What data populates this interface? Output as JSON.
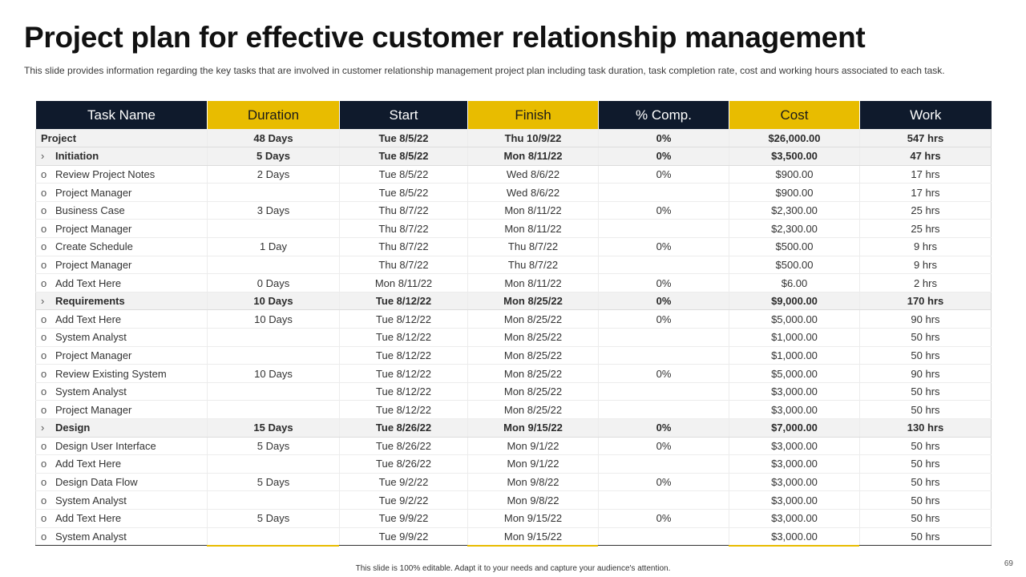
{
  "title": "Project plan for effective customer relationship management",
  "subtitle": "This slide provides information regarding the key tasks that are involved in customer relationship management project plan including task duration, task completion rate, cost and working hours associated to each task.",
  "columns": [
    "Task Name",
    "Duration",
    "Start",
    "Finish",
    "% Comp.",
    "Cost",
    "Work"
  ],
  "rows": [
    {
      "bold": true,
      "marker": "",
      "task": "Project",
      "duration": "48 Days",
      "start": "Tue 8/5/22",
      "finish": "Thu 10/9/22",
      "comp": "0%",
      "cost": "$26,000.00",
      "work": "547 hrs"
    },
    {
      "bold": true,
      "marker": "›",
      "task": "Initiation",
      "duration": "5 Days",
      "start": "Tue 8/5/22",
      "finish": "Mon 8/11/22",
      "comp": "0%",
      "cost": "$3,500.00",
      "work": "47 hrs"
    },
    {
      "bold": false,
      "marker": "o",
      "task": "Review Project Notes",
      "duration": "2 Days",
      "start": "Tue 8/5/22",
      "finish": "Wed 8/6/22",
      "comp": "0%",
      "cost": "$900.00",
      "work": "17 hrs"
    },
    {
      "bold": false,
      "marker": "o",
      "task": "Project Manager",
      "duration": "",
      "start": "Tue 8/5/22",
      "finish": "Wed 8/6/22",
      "comp": "",
      "cost": "$900.00",
      "work": "17 hrs"
    },
    {
      "bold": false,
      "marker": "o",
      "task": "Business Case",
      "duration": "3 Days",
      "start": "Thu 8/7/22",
      "finish": "Mon 8/11/22",
      "comp": "0%",
      "cost": "$2,300.00",
      "work": "25 hrs"
    },
    {
      "bold": false,
      "marker": "o",
      "task": "Project Manager",
      "duration": "",
      "start": "Thu 8/7/22",
      "finish": "Mon 8/11/22",
      "comp": "",
      "cost": "$2,300.00",
      "work": "25 hrs"
    },
    {
      "bold": false,
      "marker": "o",
      "task": "Create Schedule",
      "duration": "1 Day",
      "start": "Thu 8/7/22",
      "finish": "Thu 8/7/22",
      "comp": "0%",
      "cost": "$500.00",
      "work": "9 hrs"
    },
    {
      "bold": false,
      "marker": "o",
      "task": "Project Manager",
      "duration": "",
      "start": "Thu 8/7/22",
      "finish": "Thu 8/7/22",
      "comp": "",
      "cost": "$500.00",
      "work": "9 hrs"
    },
    {
      "bold": false,
      "marker": "o",
      "task": "Add Text Here",
      "duration": "0 Days",
      "start": "Mon 8/11/22",
      "finish": "Mon 8/11/22",
      "comp": "0%",
      "cost": "$6.00",
      "work": "2 hrs"
    },
    {
      "bold": true,
      "marker": "›",
      "task": "Requirements",
      "duration": "10 Days",
      "start": "Tue 8/12/22",
      "finish": "Mon 8/25/22",
      "comp": "0%",
      "cost": "$9,000.00",
      "work": "170 hrs"
    },
    {
      "bold": false,
      "marker": "o",
      "task": "Add Text Here",
      "duration": "10 Days",
      "start": "Tue 8/12/22",
      "finish": "Mon 8/25/22",
      "comp": "0%",
      "cost": "$5,000.00",
      "work": "90 hrs"
    },
    {
      "bold": false,
      "marker": "o",
      "task": "System Analyst",
      "duration": "",
      "start": "Tue 8/12/22",
      "finish": "Mon 8/25/22",
      "comp": "",
      "cost": "$1,000.00",
      "work": "50 hrs"
    },
    {
      "bold": false,
      "marker": "o",
      "task": "Project Manager",
      "duration": "",
      "start": "Tue 8/12/22",
      "finish": "Mon 8/25/22",
      "comp": "",
      "cost": "$1,000.00",
      "work": "50 hrs"
    },
    {
      "bold": false,
      "marker": "o",
      "task": "Review Existing System",
      "duration": "10 Days",
      "start": "Tue 8/12/22",
      "finish": "Mon 8/25/22",
      "comp": "0%",
      "cost": "$5,000.00",
      "work": "90 hrs"
    },
    {
      "bold": false,
      "marker": "o",
      "task": "System Analyst",
      "duration": "",
      "start": "Tue 8/12/22",
      "finish": "Mon 8/25/22",
      "comp": "",
      "cost": "$3,000.00",
      "work": "50 hrs"
    },
    {
      "bold": false,
      "marker": "o",
      "task": "Project Manager",
      "duration": "",
      "start": "Tue 8/12/22",
      "finish": "Mon 8/25/22",
      "comp": "",
      "cost": "$3,000.00",
      "work": "50 hrs"
    },
    {
      "bold": true,
      "marker": "›",
      "task": "Design",
      "duration": "15 Days",
      "start": "Tue 8/26/22",
      "finish": "Mon 9/15/22",
      "comp": "0%",
      "cost": "$7,000.00",
      "work": "130 hrs"
    },
    {
      "bold": false,
      "marker": "o",
      "task": "Design User Interface",
      "duration": "5 Days",
      "start": "Tue 8/26/22",
      "finish": "Mon 9/1/22",
      "comp": "0%",
      "cost": "$3,000.00",
      "work": "50 hrs"
    },
    {
      "bold": false,
      "marker": "o",
      "task": "Add Text Here",
      "duration": "",
      "start": "Tue 8/26/22",
      "finish": "Mon 9/1/22",
      "comp": "",
      "cost": "$3,000.00",
      "work": "50 hrs"
    },
    {
      "bold": false,
      "marker": "o",
      "task": "Design Data Flow",
      "duration": "5 Days",
      "start": "Tue 9/2/22",
      "finish": "Mon 9/8/22",
      "comp": "0%",
      "cost": "$3,000.00",
      "work": "50 hrs"
    },
    {
      "bold": false,
      "marker": "o",
      "task": "System Analyst",
      "duration": "",
      "start": "Tue 9/2/22",
      "finish": "Mon 9/8/22",
      "comp": "",
      "cost": "$3,000.00",
      "work": "50 hrs"
    },
    {
      "bold": false,
      "marker": "o",
      "task": "Add Text Here",
      "duration": "5 Days",
      "start": "Tue 9/9/22",
      "finish": "Mon 9/15/22",
      "comp": "0%",
      "cost": "$3,000.00",
      "work": "50 hrs"
    },
    {
      "bold": false,
      "marker": "o",
      "task": "System Analyst",
      "duration": "",
      "start": "Tue 9/9/22",
      "finish": "Mon 9/15/22",
      "comp": "",
      "cost": "$3,000.00",
      "work": "50 hrs"
    }
  ],
  "footer": "This slide is 100% editable. Adapt it to your needs and capture your audience's attention.",
  "page_number": "69",
  "colors": {
    "navy": "#0f1a2c",
    "gold": "#e8bc00",
    "row_highlight": "#f2f2f2"
  }
}
